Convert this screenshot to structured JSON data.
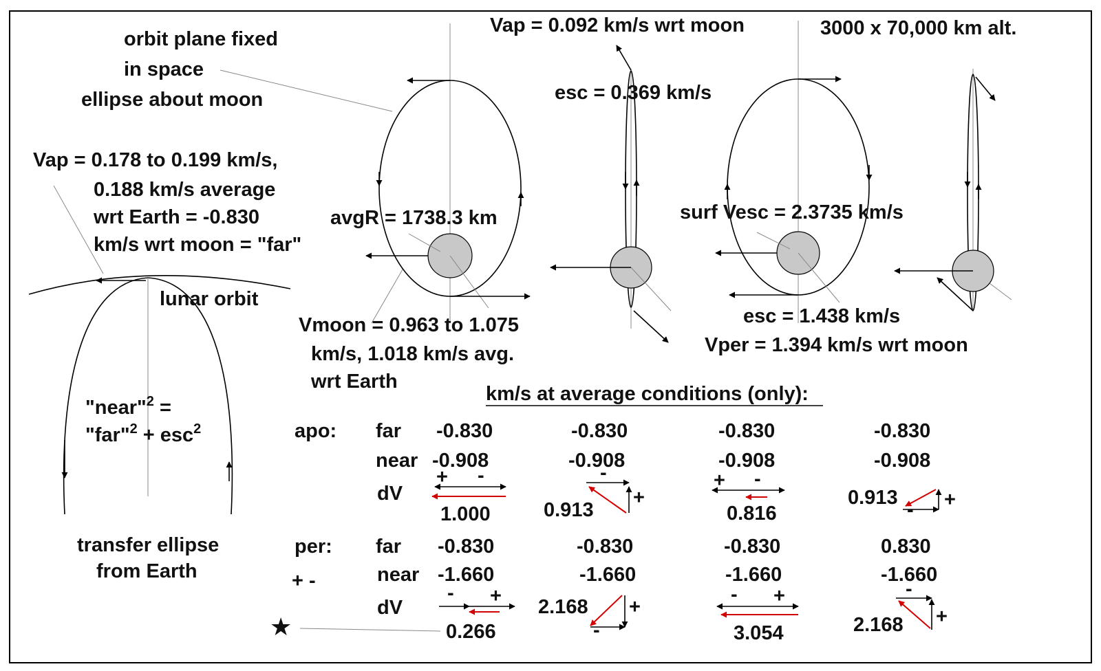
{
  "labels": {
    "orbit_plane_1": "orbit plane fixed",
    "orbit_plane_2": "in space",
    "orbit_plane_3": "ellipse about moon",
    "vap_left_1": "Vap = 0.178 to 0.199 km/s,",
    "vap_left_2": "0.188 km/s average",
    "vap_left_3": "wrt Earth  = -0.830",
    "vap_left_4": "km/s wrt moon = \"far\"",
    "lunar_orbit": "lunar orbit",
    "near_eq_1": "\"near\"",
    "near_eq_1_exp": "2",
    "near_eq_1_end": " =",
    "near_eq_2": "\"far\"",
    "near_eq_2_exp": "2",
    "near_eq_2_mid": " + esc",
    "near_eq_2_exp2": "2",
    "transfer_1": "transfer ellipse",
    "transfer_2": "from Earth",
    "avgR": "avgR = 1738.3 km",
    "vmoon_1": "Vmoon  = 0.963 to 1.075",
    "vmoon_2": "km/s,  1.018 km/s avg.",
    "vmoon_3": "wrt Earth",
    "vap_top": "Vap = 0.092 km/s  wrt moon",
    "esc_top": "esc = 0.369 km/s",
    "alt_top": "3000 x 70,000 km alt.",
    "surf_vesc": "surf Vesc = 2.3735 km/s",
    "esc_bottom": "esc = 1.438 km/s",
    "vper": "Vper = 1.394 km/s  wrt moon",
    "table_title": "km/s at average conditions (only):"
  },
  "table": {
    "apo_label": "apo:",
    "per_label": "per:",
    "per_sign": "+ -",
    "far_label": "far",
    "near_label": "near",
    "dv_label": "dV",
    "apo_far": [
      "-0.830",
      "-0.830",
      "-0.830",
      "-0.830"
    ],
    "apo_near": [
      "-0.908",
      "-0.908",
      "-0.908",
      "-0.908"
    ],
    "apo_dv": [
      "1.000",
      "0.913",
      "0.816",
      "0.913"
    ],
    "per_far": [
      "-0.830",
      "-0.830",
      "-0.830",
      "0.830"
    ],
    "per_near": [
      "-1.660",
      "-1.660",
      "-1.660",
      "-1.660"
    ],
    "per_dv": [
      "0.266",
      "2.168",
      "3.054",
      "2.168"
    ]
  },
  "signs": {
    "plus": "+",
    "minus": "-"
  },
  "star": "★",
  "colors": {
    "dv_arrow": "#d40000",
    "moon_fill": "#c8c8c8",
    "line": "#000000"
  }
}
